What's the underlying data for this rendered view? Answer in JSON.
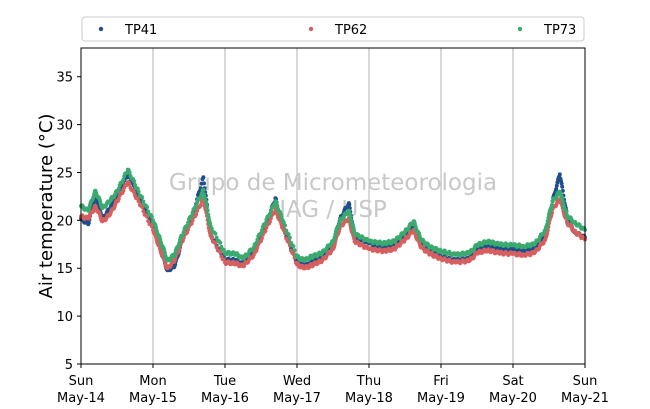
{
  "chart_data": {
    "type": "scatter",
    "ylabel": "Air temperature (°C)",
    "ylim": [
      5,
      38
    ],
    "yticks": [
      5,
      10,
      15,
      20,
      25,
      30,
      35
    ],
    "xlim_days": [
      0,
      7
    ],
    "xticks": [
      {
        "day": "Sun",
        "date": "May-14"
      },
      {
        "day": "Mon",
        "date": "May-15"
      },
      {
        "day": "Tue",
        "date": "May-16"
      },
      {
        "day": "Wed",
        "date": "May-17"
      },
      {
        "day": "Thu",
        "date": "May-18"
      },
      {
        "day": "Fri",
        "date": "May-19"
      },
      {
        "day": "Sat",
        "date": "May-20"
      },
      {
        "day": "Sun",
        "date": "May-21"
      }
    ],
    "grid": "vertical",
    "legend_position": "top",
    "watermark": [
      "Grupo de Micrometeorologia",
      "IAG / USP"
    ],
    "series": [
      {
        "name": "TP41",
        "color": "#1f4e8c",
        "points": [
          [
            0.0,
            20.2
          ],
          [
            0.1,
            19.6
          ],
          [
            0.2,
            22.7
          ],
          [
            0.3,
            20.2
          ],
          [
            0.4,
            21.2
          ],
          [
            0.5,
            22.6
          ],
          [
            0.65,
            24.8
          ],
          [
            0.8,
            22.6
          ],
          [
            1.0,
            19.4
          ],
          [
            1.1,
            17.0
          ],
          [
            1.2,
            14.8
          ],
          [
            1.3,
            15.2
          ],
          [
            1.4,
            17.8
          ],
          [
            1.55,
            20.5
          ],
          [
            1.7,
            24.5
          ],
          [
            1.8,
            18.5
          ],
          [
            2.0,
            15.9
          ],
          [
            2.15,
            15.8
          ],
          [
            2.25,
            15.4
          ],
          [
            2.4,
            16.8
          ],
          [
            2.55,
            19.2
          ],
          [
            2.7,
            22.3
          ],
          [
            2.8,
            19.3
          ],
          [
            3.0,
            15.7
          ],
          [
            3.1,
            15.2
          ],
          [
            3.2,
            15.6
          ],
          [
            3.35,
            16.3
          ],
          [
            3.5,
            17.6
          ],
          [
            3.6,
            20.2
          ],
          [
            3.72,
            21.8
          ],
          [
            3.8,
            18.3
          ],
          [
            4.0,
            17.6
          ],
          [
            4.2,
            17.2
          ],
          [
            4.35,
            17.4
          ],
          [
            4.5,
            18.5
          ],
          [
            4.62,
            19.4
          ],
          [
            4.72,
            17.5
          ],
          [
            4.85,
            16.8
          ],
          [
            5.0,
            16.2
          ],
          [
            5.2,
            15.8
          ],
          [
            5.4,
            16.0
          ],
          [
            5.5,
            17.0
          ],
          [
            5.65,
            17.4
          ],
          [
            5.8,
            17.0
          ],
          [
            6.0,
            17.0
          ],
          [
            6.15,
            16.8
          ],
          [
            6.3,
            17.0
          ],
          [
            6.45,
            18.5
          ],
          [
            6.55,
            22.0
          ],
          [
            6.65,
            24.8
          ],
          [
            6.75,
            20.5
          ],
          [
            6.85,
            18.8
          ],
          [
            7.0,
            18.2
          ]
        ]
      },
      {
        "name": "TP62",
        "color": "#d65f5f",
        "points": [
          [
            0.0,
            20.4
          ],
          [
            0.1,
            20.2
          ],
          [
            0.2,
            21.5
          ],
          [
            0.3,
            19.9
          ],
          [
            0.4,
            20.6
          ],
          [
            0.5,
            22.0
          ],
          [
            0.65,
            24.0
          ],
          [
            0.8,
            22.0
          ],
          [
            1.0,
            19.0
          ],
          [
            1.1,
            17.0
          ],
          [
            1.2,
            15.0
          ],
          [
            1.3,
            15.8
          ],
          [
            1.4,
            17.8
          ],
          [
            1.55,
            20.0
          ],
          [
            1.7,
            22.3
          ],
          [
            1.8,
            18.4
          ],
          [
            2.0,
            15.6
          ],
          [
            2.15,
            15.5
          ],
          [
            2.25,
            15.2
          ],
          [
            2.4,
            16.4
          ],
          [
            2.55,
            18.8
          ],
          [
            2.7,
            21.2
          ],
          [
            2.8,
            19.2
          ],
          [
            3.0,
            15.4
          ],
          [
            3.1,
            15.0
          ],
          [
            3.2,
            15.3
          ],
          [
            3.35,
            15.8
          ],
          [
            3.5,
            17.0
          ],
          [
            3.6,
            19.4
          ],
          [
            3.72,
            20.2
          ],
          [
            3.8,
            17.8
          ],
          [
            4.0,
            17.0
          ],
          [
            4.2,
            16.8
          ],
          [
            4.35,
            17.0
          ],
          [
            4.5,
            18.0
          ],
          [
            4.62,
            19.0
          ],
          [
            4.72,
            17.2
          ],
          [
            4.85,
            16.5
          ],
          [
            5.0,
            16.0
          ],
          [
            5.2,
            15.6
          ],
          [
            5.4,
            15.8
          ],
          [
            5.5,
            16.6
          ],
          [
            5.65,
            16.9
          ],
          [
            5.8,
            16.6
          ],
          [
            6.0,
            16.5
          ],
          [
            6.15,
            16.4
          ],
          [
            6.3,
            16.6
          ],
          [
            6.45,
            18.0
          ],
          [
            6.55,
            21.2
          ],
          [
            6.65,
            22.2
          ],
          [
            6.75,
            19.8
          ],
          [
            6.85,
            18.9
          ],
          [
            7.0,
            18.0
          ]
        ]
      },
      {
        "name": "TP73",
        "color": "#3aaa6e",
        "points": [
          [
            0.0,
            21.5
          ],
          [
            0.1,
            21.0
          ],
          [
            0.2,
            23.1
          ],
          [
            0.3,
            21.3
          ],
          [
            0.4,
            22.0
          ],
          [
            0.5,
            23.0
          ],
          [
            0.65,
            25.3
          ],
          [
            0.8,
            23.0
          ],
          [
            1.0,
            20.0
          ],
          [
            1.1,
            18.0
          ],
          [
            1.2,
            15.8
          ],
          [
            1.3,
            16.4
          ],
          [
            1.4,
            18.4
          ],
          [
            1.55,
            20.8
          ],
          [
            1.7,
            23.2
          ],
          [
            1.8,
            19.4
          ],
          [
            2.0,
            16.6
          ],
          [
            2.15,
            16.5
          ],
          [
            2.25,
            16.0
          ],
          [
            2.4,
            17.2
          ],
          [
            2.55,
            19.6
          ],
          [
            2.7,
            22.0
          ],
          [
            2.8,
            20.0
          ],
          [
            3.0,
            16.2
          ],
          [
            3.1,
            15.8
          ],
          [
            3.2,
            16.2
          ],
          [
            3.35,
            16.6
          ],
          [
            3.5,
            17.8
          ],
          [
            3.6,
            20.0
          ],
          [
            3.72,
            21.0
          ],
          [
            3.8,
            18.6
          ],
          [
            4.0,
            17.8
          ],
          [
            4.2,
            17.6
          ],
          [
            4.35,
            17.8
          ],
          [
            4.5,
            18.8
          ],
          [
            4.62,
            19.9
          ],
          [
            4.72,
            18.0
          ],
          [
            4.85,
            17.2
          ],
          [
            5.0,
            16.8
          ],
          [
            5.2,
            16.4
          ],
          [
            5.4,
            16.6
          ],
          [
            5.5,
            17.4
          ],
          [
            5.65,
            17.8
          ],
          [
            5.8,
            17.5
          ],
          [
            6.0,
            17.4
          ],
          [
            6.15,
            17.3
          ],
          [
            6.3,
            17.5
          ],
          [
            6.45,
            19.0
          ],
          [
            6.55,
            22.0
          ],
          [
            6.65,
            23.0
          ],
          [
            6.75,
            20.5
          ],
          [
            6.85,
            19.8
          ],
          [
            7.0,
            19.0
          ]
        ]
      }
    ]
  }
}
